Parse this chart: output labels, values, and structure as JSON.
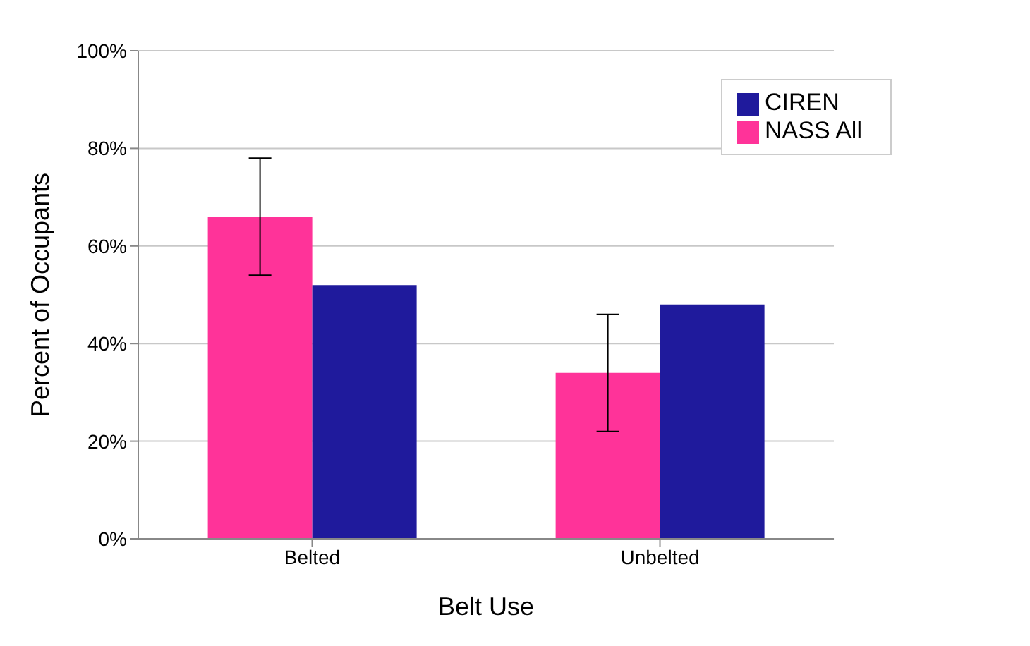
{
  "chart_data": {
    "type": "bar",
    "xlabel": "Belt Use",
    "ylabel": "Percent of Occupants",
    "categories": [
      "Belted",
      "Unbelted"
    ],
    "series": [
      {
        "name": "NASS All",
        "color": "#ff3399",
        "values": [
          66,
          34
        ],
        "errors": [
          12,
          12
        ]
      },
      {
        "name": "CIREN",
        "color": "#1f1a9c",
        "values": [
          52,
          48
        ]
      }
    ],
    "ylim": [
      0,
      100
    ],
    "yticks": [
      {
        "value": 0,
        "label": "0%"
      },
      {
        "value": 20,
        "label": "20%"
      },
      {
        "value": 40,
        "label": "40%"
      },
      {
        "value": 60,
        "label": "60%"
      },
      {
        "value": 80,
        "label": "80%"
      },
      {
        "value": 100,
        "label": "100%"
      }
    ],
    "grid": "y",
    "legend": "top right"
  }
}
